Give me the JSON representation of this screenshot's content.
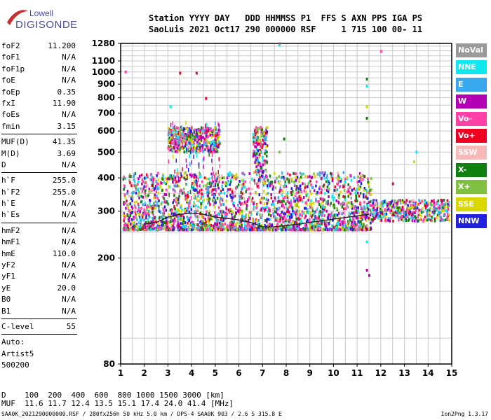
{
  "logo": {
    "line1": "Lowell",
    "line2": "DIGISONDE"
  },
  "header": {
    "line1": "Station YYYY DAY   DDD HHMMSS P1  FFS S AXN PPS IGA PS",
    "line2": "SaoLuis 2021 Oct17 290 000000 RSF     1 715 100 00- 11"
  },
  "params": [
    {
      "name": "foF2",
      "value": "11.200"
    },
    {
      "name": "foF1",
      "value": "N/A"
    },
    {
      "name": "foF1p",
      "value": "N/A"
    },
    {
      "name": "foE",
      "value": "N/A"
    },
    {
      "name": "foEp",
      "value": "0.35"
    },
    {
      "name": "fxI",
      "value": "11.90"
    },
    {
      "name": "foEs",
      "value": "N/A"
    },
    {
      "name": "fmin",
      "value": "3.15"
    },
    {
      "sep": true
    },
    {
      "name": "MUF(D)",
      "value": "41.35"
    },
    {
      "name": "M(D)",
      "value": "3.69"
    },
    {
      "name": "D",
      "value": "N/A"
    },
    {
      "sep": true
    },
    {
      "name": "h`F",
      "value": "255.0"
    },
    {
      "name": "h`F2",
      "value": "255.0"
    },
    {
      "name": "h`E",
      "value": "N/A"
    },
    {
      "name": "h`Es",
      "value": "N/A"
    },
    {
      "sep": true
    },
    {
      "name": "hmF2",
      "value": "N/A"
    },
    {
      "name": "hmF1",
      "value": "N/A"
    },
    {
      "name": "hmE",
      "value": "110.0"
    },
    {
      "name": "yF2",
      "value": "N/A"
    },
    {
      "name": "yF1",
      "value": "N/A"
    },
    {
      "name": "yE",
      "value": "20.0"
    },
    {
      "name": "B0",
      "value": "N/A"
    },
    {
      "name": "B1",
      "value": "N/A"
    },
    {
      "sep": true
    },
    {
      "name": "C-level",
      "value": "55"
    },
    {
      "sep": true
    },
    {
      "text": "Auto:"
    },
    {
      "text": "Artist5"
    },
    {
      "text": "500200"
    }
  ],
  "legend": [
    {
      "label": "NoVal",
      "color": "#9a9a9a"
    },
    {
      "label": "NNE",
      "color": "#10e8f0"
    },
    {
      "label": "E",
      "color": "#3aa8ee"
    },
    {
      "label": "W",
      "color": "#b400b4"
    },
    {
      "label": "Vo-",
      "color": "#ff40a8"
    },
    {
      "label": "Vo+",
      "color": "#ee0020"
    },
    {
      "label": "SSW",
      "color": "#f8b8b8"
    },
    {
      "label": "X-",
      "color": "#108010"
    },
    {
      "label": "X+",
      "color": "#80c040"
    },
    {
      "label": "SSE",
      "color": "#d8d800"
    },
    {
      "label": "NNW",
      "color": "#2020e0"
    }
  ],
  "footer": {
    "line1": "D    100  200  400  600  800 1000 1500 3000 [km]",
    "line2": "MUF  11.6 11.7 12.4 13.5 15.1 17.4 24.0 41.4 [MHz]",
    "line3": "SAA0K_2021290000000.RSF / 280fx256h 50 kHz 5.0 km / DPS-4 SAA0K 903 / 2.6 S 315.8 E",
    "version": "Ion2Png 1.3.17"
  },
  "chart_data": {
    "type": "scatter",
    "xlim": [
      1,
      15
    ],
    "ylim": [
      80,
      1280
    ],
    "y_scale": "log",
    "x_ticks": [
      1,
      2,
      3,
      4,
      5,
      6,
      7,
      8,
      9,
      10,
      11,
      12,
      13,
      14,
      15
    ],
    "y_ticks": [
      80,
      200,
      300,
      400,
      500,
      600,
      700,
      800,
      900,
      1000,
      1100,
      1280
    ],
    "grid": true,
    "clusters": [
      {
        "name": "F-trace",
        "x_range": [
          1.1,
          11.6
        ],
        "y_range": [
          255,
          420
        ],
        "density": "high"
      },
      {
        "name": "F-trace-ext",
        "x_range": [
          11.6,
          14.9
        ],
        "y_range": [
          275,
          330
        ],
        "density": "medium"
      },
      {
        "name": "multi-hop",
        "x_range": [
          3.0,
          5.2
        ],
        "y_range": [
          500,
          620
        ],
        "density": "medium"
      },
      {
        "name": "spread",
        "x_range": [
          6.6,
          7.2
        ],
        "y_range": [
          420,
          620
        ],
        "density": "low"
      }
    ],
    "points": [
      [
        1.2,
        1000
      ],
      [
        7.7,
        1275
      ],
      [
        7.7,
        1260
      ],
      [
        12.0,
        1195
      ],
      [
        11.4,
        940
      ],
      [
        11.4,
        885
      ],
      [
        11.4,
        740
      ],
      [
        11.4,
        670
      ],
      [
        3.1,
        740
      ],
      [
        4.6,
        795
      ],
      [
        3.5,
        990
      ],
      [
        4.2,
        990
      ],
      [
        11.4,
        180
      ],
      [
        11.5,
        172
      ],
      [
        11.4,
        230
      ],
      [
        13.4,
        460
      ],
      [
        13.5,
        500
      ],
      [
        12.5,
        380
      ],
      [
        7.7,
        500
      ],
      [
        7.9,
        560
      ]
    ],
    "curve": {
      "x": [
        2.0,
        2.5,
        3.0,
        3.5,
        4.0,
        4.5,
        5.0,
        5.5,
        6.0,
        6.5,
        7.0,
        7.5,
        8.0,
        8.5,
        9.0,
        9.5,
        10.0,
        10.5,
        11.0,
        11.5
      ],
      "y": [
        268,
        272,
        285,
        292,
        295,
        292,
        285,
        282,
        278,
        272,
        262,
        262,
        265,
        268,
        272,
        276,
        280,
        284,
        288,
        292
      ]
    }
  }
}
